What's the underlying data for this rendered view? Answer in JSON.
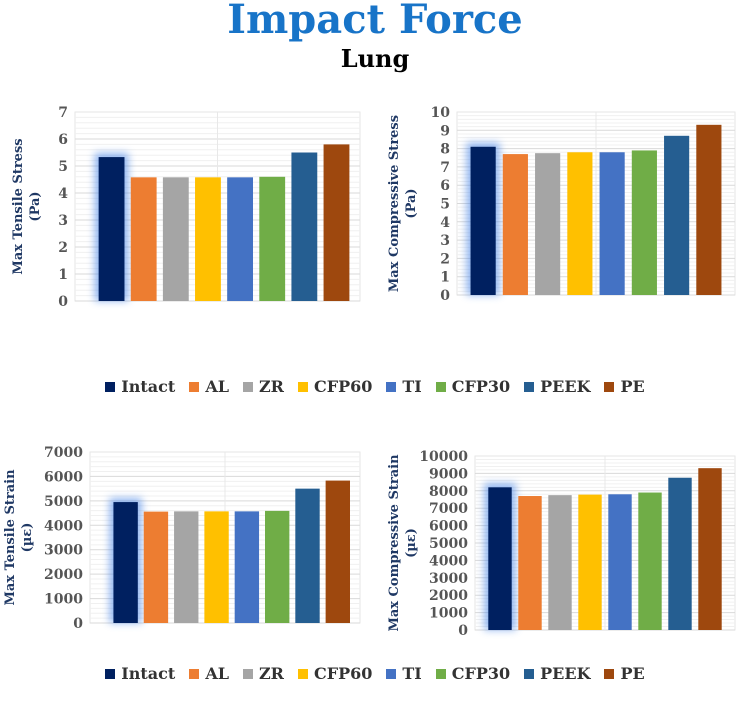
{
  "header": {
    "title": "Impact Force",
    "subtitle": "Lung"
  },
  "legend": [
    "Intact",
    "AL",
    "ZR",
    "CFP60",
    "TI",
    "CFP30",
    "PEEK",
    "PE"
  ],
  "colors": [
    "#002060",
    "#ed7d31",
    "#a5a5a5",
    "#ffc000",
    "#4472c4",
    "#70ad47",
    "#255e91",
    "#9e480e"
  ],
  "chart_data": [
    {
      "type": "bar",
      "ylabel": [
        "Max Tensile Stress",
        "(Pa)"
      ],
      "ylim": [
        0,
        7
      ],
      "ticks": [
        "0",
        "1",
        "2",
        "3",
        "4",
        "5",
        "6",
        "7"
      ],
      "categories": [
        "Intact",
        "AL",
        "ZR",
        "CFP60",
        "TI",
        "CFP30",
        "PEEK",
        "PE"
      ],
      "values": [
        5.33,
        4.58,
        4.58,
        4.58,
        4.58,
        4.6,
        5.5,
        5.8
      ]
    },
    {
      "type": "bar",
      "ylabel": [
        "Max Compressive  Stress",
        "(Pa)"
      ],
      "ylim": [
        0,
        10
      ],
      "ticks": [
        "0",
        "1",
        "2",
        "3",
        "4",
        "5",
        "6",
        "7",
        "8",
        "9",
        "10"
      ],
      "categories": [
        "Intact",
        "AL",
        "ZR",
        "CFP60",
        "TI",
        "CFP30",
        "PEEK",
        "PE"
      ],
      "values": [
        8.1,
        7.7,
        7.75,
        7.8,
        7.8,
        7.9,
        8.7,
        9.3
      ]
    },
    {
      "type": "bar",
      "ylabel": [
        "Max Tensile Strain",
        "(µε)"
      ],
      "ylim": [
        0,
        7000
      ],
      "ticks": [
        "0",
        "1000",
        "2000",
        "3000",
        "4000",
        "5000",
        "6000",
        "7000"
      ],
      "categories": [
        "Intact",
        "AL",
        "ZR",
        "CFP60",
        "TI",
        "CFP30",
        "PEEK",
        "PE"
      ],
      "values": [
        4950,
        4560,
        4570,
        4570,
        4570,
        4590,
        5500,
        5830
      ]
    },
    {
      "type": "bar",
      "ylabel": [
        "Max  Compressive Strain",
        "(µε)"
      ],
      "ylim": [
        0,
        10000
      ],
      "ticks": [
        "0",
        "1000",
        "2000",
        "3000",
        "4000",
        "5000",
        "6000",
        "7000",
        "8000",
        "9000",
        "10000"
      ],
      "categories": [
        "Intact",
        "AL",
        "ZR",
        "CFP60",
        "TI",
        "CFP30",
        "PEEK",
        "PE"
      ],
      "values": [
        8200,
        7700,
        7750,
        7780,
        7800,
        7900,
        8750,
        9300
      ]
    }
  ]
}
